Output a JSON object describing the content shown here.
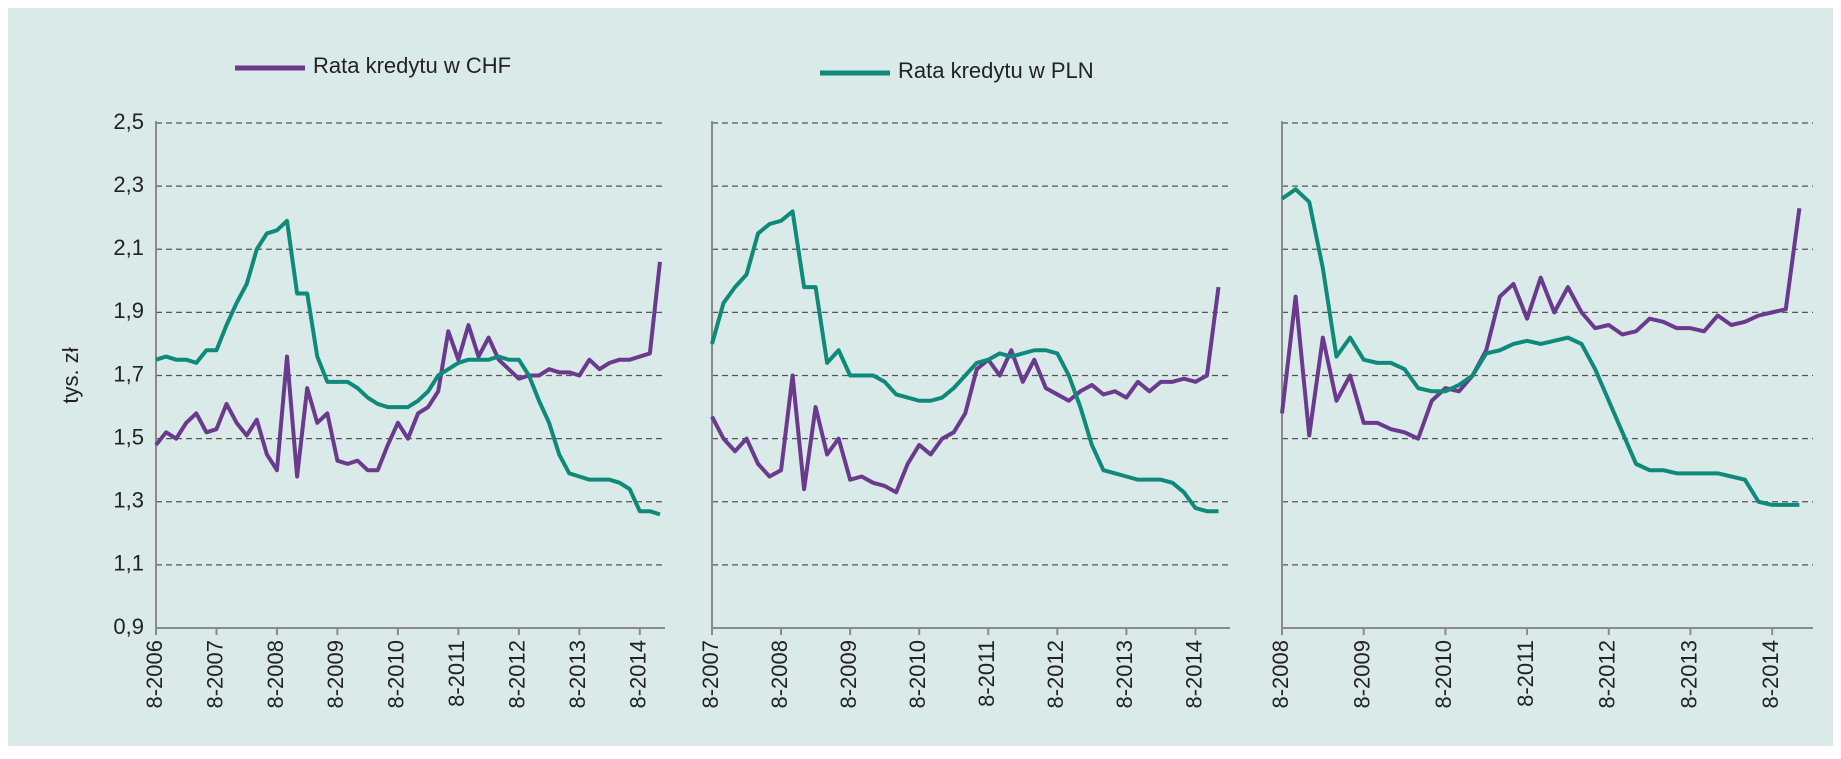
{
  "chart_data": [
    {
      "type": "line",
      "y_label": "tys. zł",
      "x": [
        "8-2006",
        "10-2006",
        "12-2006",
        "2-2007",
        "4-2007",
        "6-2007",
        "8-2007",
        "10-2007",
        "12-2007",
        "2-2008",
        "4-2008",
        "6-2008",
        "8-2008",
        "10-2008",
        "12-2008",
        "2-2009",
        "4-2009",
        "6-2009",
        "8-2009",
        "10-2009",
        "12-2009",
        "2-2010",
        "4-2010",
        "6-2010",
        "8-2010",
        "10-2010",
        "12-2010",
        "2-2011",
        "4-2011",
        "6-2011",
        "8-2011",
        "10-2011",
        "12-2011",
        "2-2012",
        "4-2012",
        "6-2012",
        "8-2012",
        "10-2012",
        "12-2012",
        "2-2013",
        "4-2013",
        "6-2013",
        "8-2013",
        "10-2013",
        "12-2013",
        "2-2014",
        "4-2014",
        "6-2014",
        "8-2014",
        "10-2014",
        "12-2014"
      ],
      "series": [
        {
          "name": "Rata kredytu w CHF",
          "color": "#6b3a8e",
          "values": [
            1.48,
            1.52,
            1.5,
            1.55,
            1.58,
            1.52,
            1.53,
            1.61,
            1.55,
            1.51,
            1.56,
            1.45,
            1.4,
            1.76,
            1.38,
            1.66,
            1.55,
            1.58,
            1.43,
            1.42,
            1.43,
            1.4,
            1.4,
            1.48,
            1.55,
            1.5,
            1.58,
            1.6,
            1.65,
            1.84,
            1.75,
            1.86,
            1.76,
            1.82,
            1.75,
            1.72,
            1.69,
            1.7,
            1.7,
            1.72,
            1.71,
            1.71,
            1.7,
            1.75,
            1.72,
            1.74,
            1.75,
            1.75,
            1.76,
            1.77,
            2.06
          ]
        },
        {
          "name": "Rata kredytu w PLN",
          "color": "#0f8a7a",
          "values": [
            1.75,
            1.76,
            1.75,
            1.75,
            1.74,
            1.78,
            1.78,
            1.86,
            1.93,
            1.99,
            2.1,
            2.15,
            2.16,
            2.19,
            1.96,
            1.96,
            1.76,
            1.68,
            1.68,
            1.68,
            1.66,
            1.63,
            1.61,
            1.6,
            1.6,
            1.6,
            1.62,
            1.65,
            1.7,
            1.72,
            1.74,
            1.75,
            1.75,
            1.75,
            1.76,
            1.75,
            1.75,
            1.7,
            1.62,
            1.55,
            1.45,
            1.39,
            1.38,
            1.37,
            1.37,
            1.37,
            1.36,
            1.34,
            1.27,
            1.27,
            1.26
          ]
        }
      ],
      "xlim": [
        "8-2006",
        "1-2015"
      ],
      "xticks": [
        "8-2006",
        "8-2007",
        "8-2008",
        "8-2009",
        "8-2010",
        "8-2011",
        "8-2012",
        "8-2013",
        "8-2014"
      ],
      "ylim": [
        0.9,
        2.5
      ],
      "yticks": [
        {
          "value": 0.9,
          "label": "0,9"
        },
        {
          "value": 1.1,
          "label": "1,1"
        },
        {
          "value": 1.3,
          "label": "1,3"
        },
        {
          "value": 1.5,
          "label": "1,5"
        },
        {
          "value": 1.7,
          "label": "1,7"
        },
        {
          "value": 1.9,
          "label": "1,9"
        },
        {
          "value": 2.1,
          "label": "2,1"
        },
        {
          "value": 2.3,
          "label": "2,3"
        },
        {
          "value": 2.5,
          "label": "2,5"
        }
      ],
      "grid": true
    },
    {
      "type": "line",
      "x": [
        "8-2007",
        "10-2007",
        "12-2007",
        "2-2008",
        "4-2008",
        "6-2008",
        "8-2008",
        "10-2008",
        "12-2008",
        "2-2009",
        "4-2009",
        "6-2009",
        "8-2009",
        "10-2009",
        "12-2009",
        "2-2010",
        "4-2010",
        "6-2010",
        "8-2010",
        "10-2010",
        "12-2010",
        "2-2011",
        "4-2011",
        "6-2011",
        "8-2011",
        "10-2011",
        "12-2011",
        "2-2012",
        "4-2012",
        "6-2012",
        "8-2012",
        "10-2012",
        "12-2012",
        "2-2013",
        "4-2013",
        "6-2013",
        "8-2013",
        "10-2013",
        "12-2013",
        "2-2014",
        "4-2014",
        "6-2014",
        "8-2014",
        "10-2014",
        "12-2014"
      ],
      "series": [
        {
          "color": "#6b3a8e",
          "values": [
            1.57,
            1.5,
            1.46,
            1.5,
            1.42,
            1.38,
            1.4,
            1.7,
            1.34,
            1.6,
            1.45,
            1.5,
            1.37,
            1.38,
            1.36,
            1.35,
            1.33,
            1.42,
            1.48,
            1.45,
            1.5,
            1.52,
            1.58,
            1.72,
            1.75,
            1.7,
            1.78,
            1.68,
            1.75,
            1.66,
            1.64,
            1.62,
            1.65,
            1.67,
            1.64,
            1.65,
            1.63,
            1.68,
            1.65,
            1.68,
            1.68,
            1.69,
            1.68,
            1.7,
            1.98
          ]
        },
        {
          "color": "#0f8a7a",
          "values": [
            1.8,
            1.93,
            1.98,
            2.02,
            2.15,
            2.18,
            2.19,
            2.22,
            1.98,
            1.98,
            1.74,
            1.78,
            1.7,
            1.7,
            1.7,
            1.68,
            1.64,
            1.63,
            1.62,
            1.62,
            1.63,
            1.66,
            1.7,
            1.74,
            1.75,
            1.77,
            1.76,
            1.77,
            1.78,
            1.78,
            1.77,
            1.7,
            1.6,
            1.48,
            1.4,
            1.39,
            1.38,
            1.37,
            1.37,
            1.37,
            1.36,
            1.33,
            1.28,
            1.27,
            1.27
          ]
        }
      ],
      "xlim": [
        "8-2007",
        "2-2015"
      ],
      "xticks": [
        "8-2007",
        "8-2008",
        "8-2009",
        "8-2010",
        "8-2011",
        "8-2012",
        "8-2013",
        "8-2014"
      ],
      "ylim": [
        0.9,
        2.5
      ],
      "yticks": [
        0.9,
        1.1,
        1.3,
        1.5,
        1.7,
        1.9,
        2.1,
        2.3,
        2.5
      ],
      "grid": true
    },
    {
      "type": "line",
      "x": [
        "8-2008",
        "10-2008",
        "12-2008",
        "2-2009",
        "4-2009",
        "6-2009",
        "8-2009",
        "10-2009",
        "12-2009",
        "2-2010",
        "4-2010",
        "6-2010",
        "8-2010",
        "10-2010",
        "12-2010",
        "2-2011",
        "4-2011",
        "6-2011",
        "8-2011",
        "10-2011",
        "12-2011",
        "2-2012",
        "4-2012",
        "6-2012",
        "8-2012",
        "10-2012",
        "12-2012",
        "2-2013",
        "4-2013",
        "6-2013",
        "8-2013",
        "10-2013",
        "12-2013",
        "2-2014",
        "4-2014",
        "6-2014",
        "8-2014",
        "10-2014",
        "12-2014"
      ],
      "series": [
        {
          "color": "#6b3a8e",
          "values": [
            1.58,
            1.95,
            1.51,
            1.82,
            1.62,
            1.7,
            1.55,
            1.55,
            1.53,
            1.52,
            1.5,
            1.62,
            1.66,
            1.65,
            1.7,
            1.78,
            1.95,
            1.99,
            1.88,
            2.01,
            1.9,
            1.98,
            1.9,
            1.85,
            1.86,
            1.83,
            1.84,
            1.88,
            1.87,
            1.85,
            1.85,
            1.84,
            1.89,
            1.86,
            1.87,
            1.89,
            1.9,
            1.91,
            2.23
          ]
        },
        {
          "color": "#0f8a7a",
          "values": [
            2.26,
            2.29,
            2.25,
            2.04,
            1.76,
            1.82,
            1.75,
            1.74,
            1.74,
            1.72,
            1.66,
            1.65,
            1.65,
            1.67,
            1.7,
            1.77,
            1.78,
            1.8,
            1.81,
            1.8,
            1.81,
            1.82,
            1.8,
            1.72,
            1.62,
            1.52,
            1.42,
            1.4,
            1.4,
            1.39,
            1.39,
            1.39,
            1.39,
            1.38,
            1.37,
            1.3,
            1.29,
            1.29,
            1.29
          ]
        }
      ],
      "xlim": [
        "8-2008",
        "2-2015"
      ],
      "xticks": [
        "8-2008",
        "8-2009",
        "8-2010",
        "8-2011",
        "8-2012",
        "8-2013",
        "8-2014"
      ],
      "ylim": [
        0.9,
        2.5
      ],
      "yticks": [
        0.9,
        1.1,
        1.3,
        1.5,
        1.7,
        1.9,
        2.1,
        2.3,
        2.5
      ],
      "grid": true
    }
  ]
}
